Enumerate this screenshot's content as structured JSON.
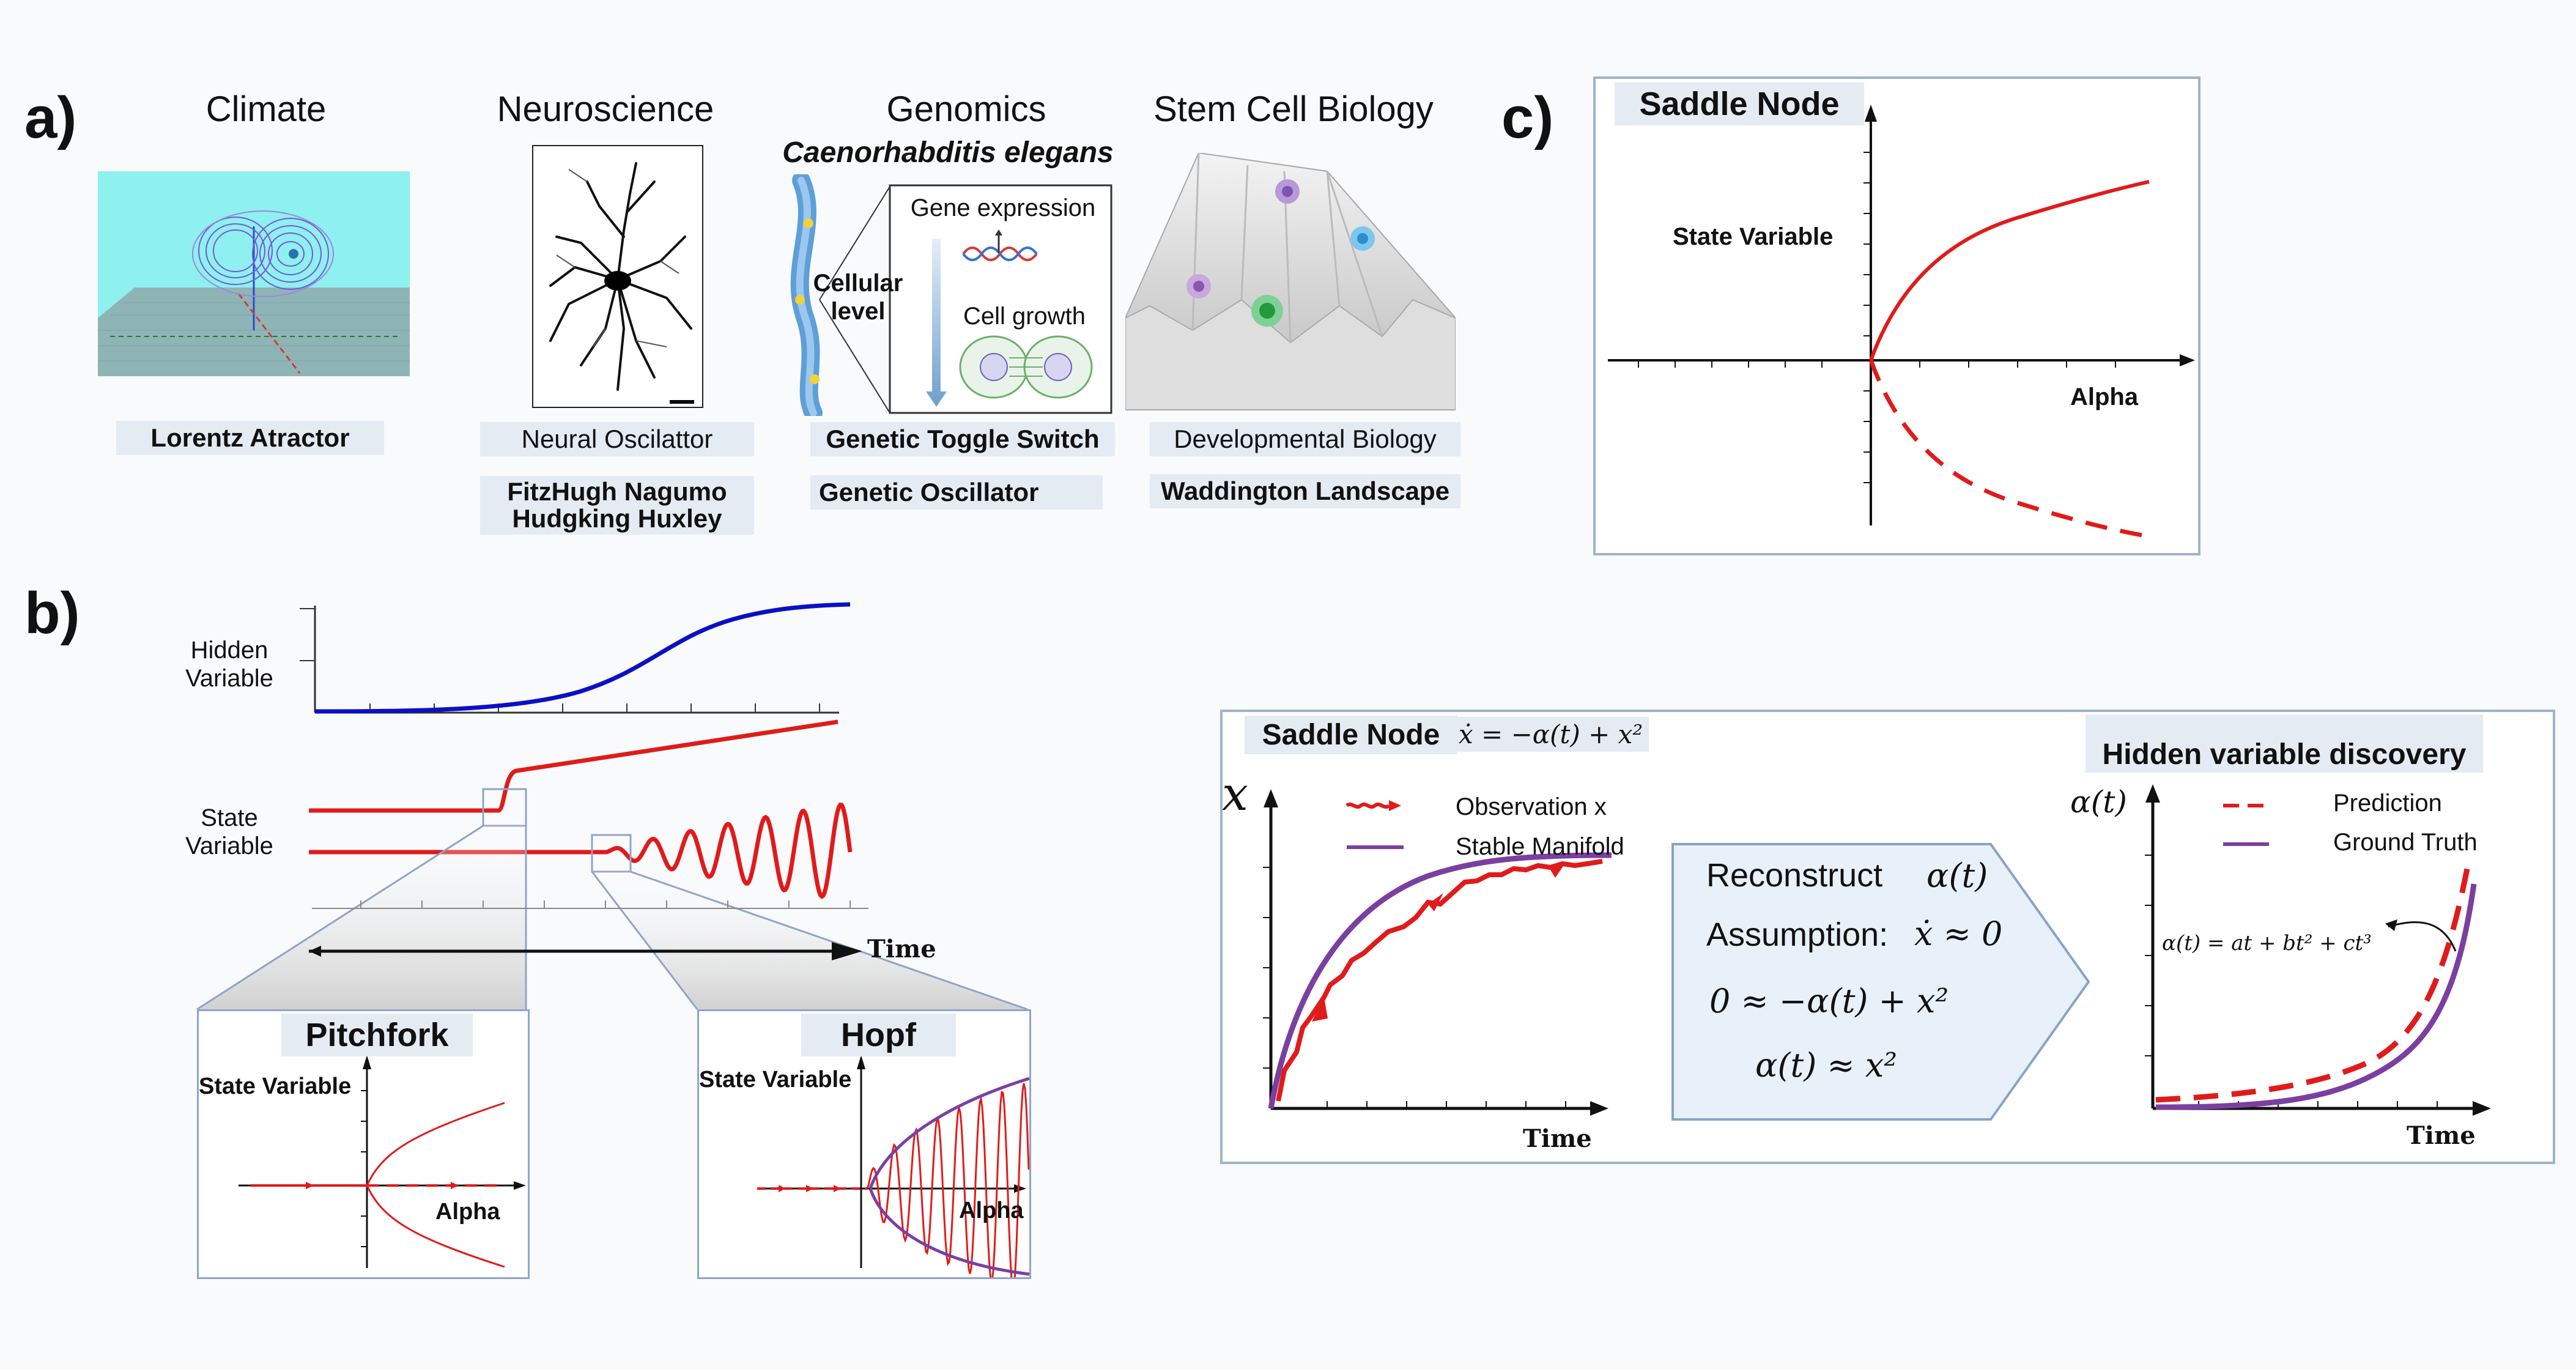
{
  "panel_labels": {
    "a": "a)",
    "b": "b)",
    "c": "c)"
  },
  "panel_a": {
    "climate": {
      "title": "Climate",
      "pill": "Lorentz Atractor"
    },
    "neuro": {
      "title": "Neuroscience",
      "pill": "Neural Oscilattor",
      "pill2_line1": "FitzHugh Nagumo",
      "pill2_line2": "Hudgking Huxley"
    },
    "genomics": {
      "title": "Genomics",
      "subtitle": "Caenorhabditis elegans",
      "cellular_line1": "Cellular",
      "cellular_line2": "level",
      "gene_expression": "Gene expression",
      "cell_growth": "Cell growth",
      "pill": "Genetic Toggle Switch",
      "pill2": "Genetic Oscillator"
    },
    "stem": {
      "title": "Stem Cell Biology",
      "pill": "Developmental Biology",
      "pill2": "Waddington Landscape"
    }
  },
  "panel_b": {
    "hidden_line1": "Hidden",
    "hidden_line2": "Variable",
    "state_line1": "State",
    "state_line2": "Variable",
    "time_label": "Time",
    "pitchfork": {
      "title": "Pitchfork",
      "ylabel": "State Variable",
      "xlabel": "Alpha"
    },
    "hopf": {
      "title": "Hopf",
      "ylabel": "State Variable",
      "xlabel": "Alpha"
    }
  },
  "panel_c": {
    "title": "Saddle Node",
    "ylabel": "State Variable",
    "xlabel": "Alpha"
  },
  "panel_d": {
    "title": "Saddle Node",
    "equation": "ẋ = −α(t) + x²",
    "y_symbol": "x",
    "legend_obs": "Observation x",
    "legend_stable": "Stable Manifold",
    "time_label": "Time",
    "reconstruct": "Reconstruct",
    "alpha_t": "α(t)",
    "assumption": "Assumption:",
    "xdot_approx": "ẋ ≈ 0",
    "eq1": "0 ≈ −α(t) + x²",
    "eq2": "α(t) ≈ x²",
    "hidden_title": "Hidden variable discovery",
    "alpha_axis": "α(t)",
    "legend_pred": "Prediction",
    "legend_truth": "Ground Truth",
    "poly": "α(t) = at + bt² + ct³",
    "time_label2": "Time"
  },
  "colors": {
    "red": "#e01b1b",
    "blue": "#0c10c4",
    "purple": "#7b3fa0",
    "frame": "#9fb3cc",
    "pill": "#e5ebf3"
  }
}
